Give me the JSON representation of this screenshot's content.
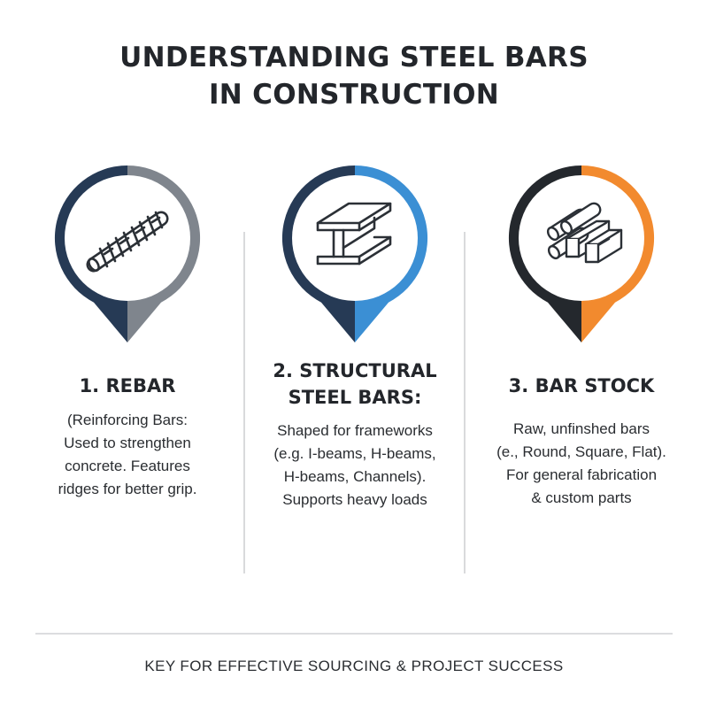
{
  "title": {
    "line1": "UNDERSTANDING STEEL BARS",
    "line2": "IN CONSTRUCTION"
  },
  "items": [
    {
      "icon": "rebar-icon",
      "ring_colors": [
        "#263a55",
        "#7f858d"
      ],
      "heading_lines": [
        "1. REBAR"
      ],
      "description_lines": [
        "(Reinforcing Bars:",
        "Used to strengthen",
        "concrete. Features",
        "ridges for better grip."
      ]
    },
    {
      "icon": "i-beam-icon",
      "ring_colors": [
        "#263a55",
        "#3b8fd4"
      ],
      "heading_lines": [
        "2. STRUCTURAL",
        "STEEL BARS:"
      ],
      "description_lines": [
        "Shaped for frameworks",
        "(e.g. I-beams, H-beams,",
        "H-beams, Channels).",
        "Supports heavy loads"
      ]
    },
    {
      "icon": "bar-stock-icon",
      "ring_colors": [
        "#24282d",
        "#f28a2e"
      ],
      "heading_lines": [
        "3. BAR STOCK"
      ],
      "description_lines": [
        "Raw, unfinshed bars",
        "(e., Round, Square, Flat).",
        "For general fabrication",
        "& custom parts"
      ]
    }
  ],
  "footer": "KEY FOR EFFECTIVE SOURCING & PROJECT SUCCESS"
}
